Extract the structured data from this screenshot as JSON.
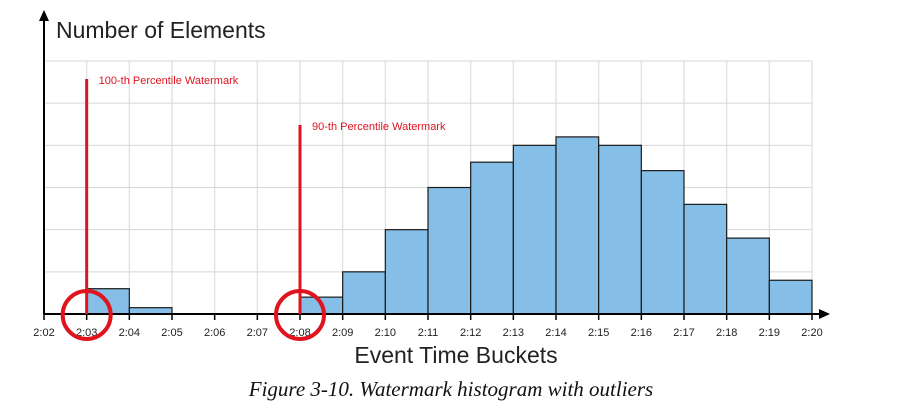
{
  "chart_data": {
    "type": "bar",
    "title": "",
    "ylabel": "Number of Elements",
    "xlabel": "Event Time Buckets",
    "ticks": [
      "2:02",
      "2:03",
      "2:04",
      "2:05",
      "2:06",
      "2:07",
      "2:08",
      "2:09",
      "2:10",
      "2:11",
      "2:12",
      "2:13",
      "2:14",
      "2:15",
      "2:16",
      "2:17",
      "2:18",
      "2:19",
      "2:20"
    ],
    "bars": [
      {
        "start": "2:03",
        "end": "2:04",
        "value": 0.6
      },
      {
        "start": "2:04",
        "end": "2:05",
        "value": 0.15
      },
      {
        "start": "2:05",
        "end": "2:06",
        "value": 0
      },
      {
        "start": "2:06",
        "end": "2:07",
        "value": 0
      },
      {
        "start": "2:07",
        "end": "2:08",
        "value": 0
      },
      {
        "start": "2:08",
        "end": "2:09",
        "value": 0.4
      },
      {
        "start": "2:09",
        "end": "2:10",
        "value": 1.0
      },
      {
        "start": "2:10",
        "end": "2:11",
        "value": 2.0
      },
      {
        "start": "2:11",
        "end": "2:12",
        "value": 3.0
      },
      {
        "start": "2:12",
        "end": "2:13",
        "value": 3.6
      },
      {
        "start": "2:13",
        "end": "2:14",
        "value": 4.0
      },
      {
        "start": "2:14",
        "end": "2:15",
        "value": 4.2
      },
      {
        "start": "2:15",
        "end": "2:16",
        "value": 4.0
      },
      {
        "start": "2:16",
        "end": "2:17",
        "value": 3.4
      },
      {
        "start": "2:17",
        "end": "2:18",
        "value": 2.6
      },
      {
        "start": "2:18",
        "end": "2:19",
        "value": 1.8
      },
      {
        "start": "2:19",
        "end": "2:20",
        "value": 0.8
      }
    ],
    "ylim": [
      0,
      6
    ],
    "y_gridlines": [
      1,
      2,
      3,
      4,
      5,
      6
    ],
    "grid": true,
    "y_tick_labels": false,
    "bar_color": "#85bfe8",
    "annotations": [
      {
        "text": "100-th Percentile Watermark",
        "x": "2:03",
        "color": "#e0141e"
      },
      {
        "text": "90-th Percentile Watermark",
        "x": "2:08",
        "color": "#e0141e"
      }
    ]
  },
  "caption": "Figure 3-10. Watermark histogram with outliers"
}
